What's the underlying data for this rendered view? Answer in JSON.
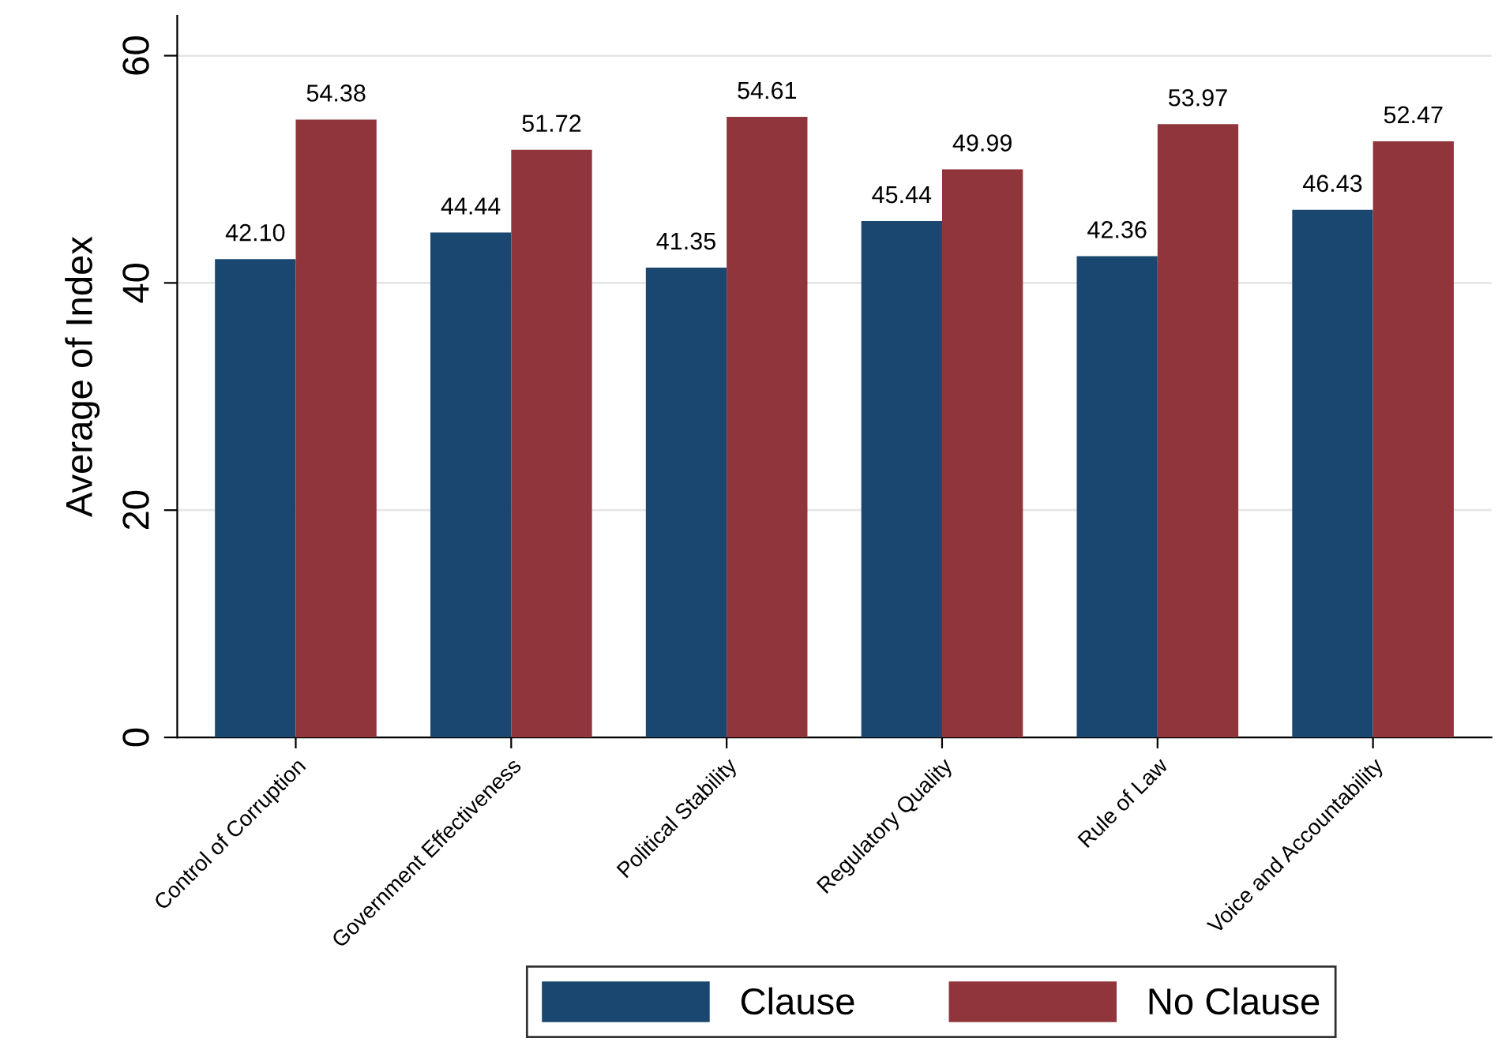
{
  "chart_data": {
    "type": "bar",
    "ylabel": "Average of Index",
    "categories": [
      "Control of Corruption",
      "Government Effectiveness",
      "Political Stability",
      "Regulatory Quality",
      "Rule of Law",
      "Voice and Accountability"
    ],
    "series": [
      {
        "name": "Clause",
        "color": "#1a476f",
        "values": [
          42.1,
          44.44,
          41.35,
          45.44,
          42.36,
          46.43
        ],
        "value_labels": [
          "42.10",
          "44.44",
          "41.35",
          "45.44",
          "42.36",
          "46.43"
        ]
      },
      {
        "name": "No Clause",
        "color": "#90353b",
        "values": [
          54.38,
          51.72,
          54.61,
          49.99,
          53.97,
          52.47
        ],
        "value_labels": [
          "54.38",
          "51.72",
          "54.61",
          "49.99",
          "53.97",
          "52.47"
        ]
      }
    ],
    "ylim": [
      0,
      63.5
    ],
    "yticks": [
      0,
      20,
      40,
      60
    ],
    "grid": "y",
    "legend": "bottom"
  }
}
